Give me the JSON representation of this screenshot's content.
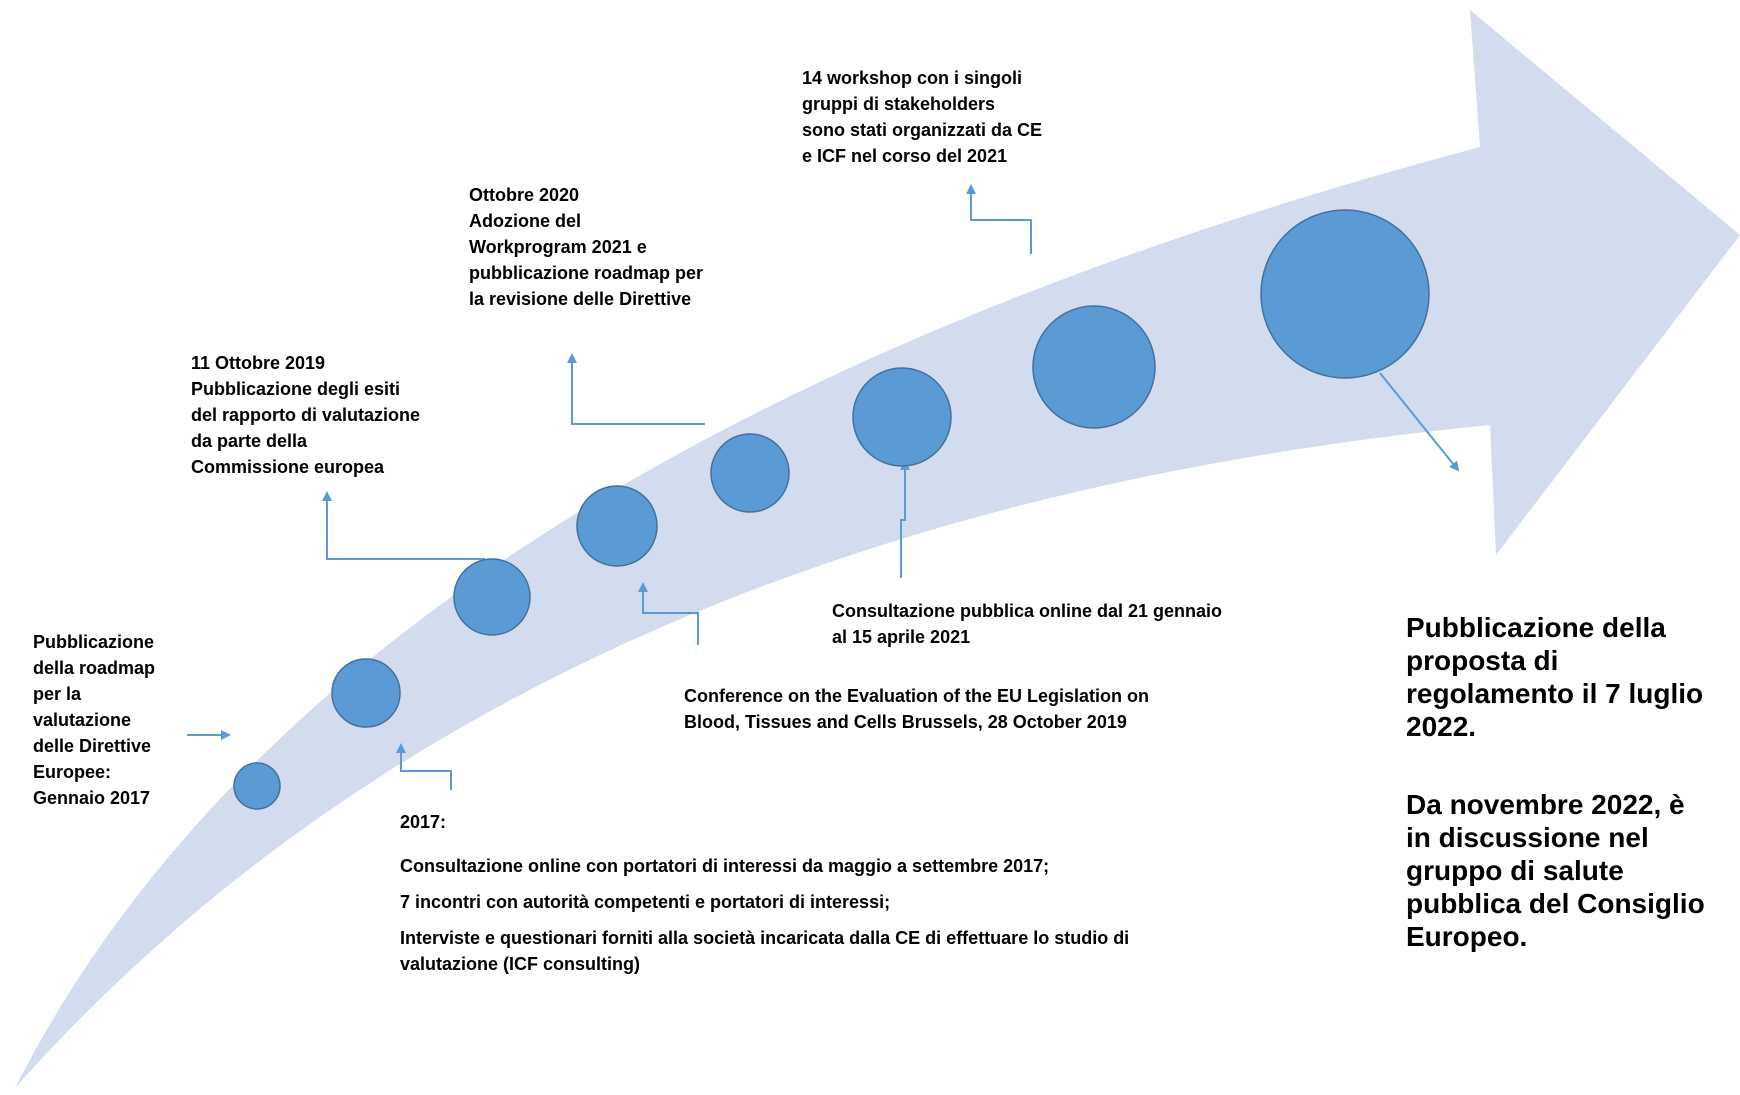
{
  "colors": {
    "arrow": "#d2dcee",
    "circle": "#5b9bd5",
    "circle_stroke": "#41719c",
    "connector": "#5b9bd5"
  },
  "labels": {
    "roadmap_2017": "Pubblicazione\ndella roadmap\nper la\nvalutazione\ndelle Direttive\nEuropee:\nGennaio 2017",
    "evaluation_2019": "11 Ottobre 2019\nPubblicazione degli esiti\ndel rapporto di valutazione\nda parte della\nCommissione europea",
    "workprogram_2020": "Ottobre 2020\nAdozione del\nWorkprogram 2021 e\npubblicazione roadmap per\nla revisione delle Direttive",
    "workshops_2021": "14 workshop con i singoli\ngruppi di stakeholders\nsono stati organizzati da CE\ne ICF nel corso del 2021",
    "public_consultation_2021": "Consultazione pubblica online dal 21 gennaio\nal 15 aprile 2021",
    "conference_2019": "Conference on the Evaluation of the EU Legislation on\nBlood, Tissues and Cells Brussels, 28 October 2019"
  },
  "block_2017": {
    "heading": "2017:",
    "line1": "Consultazione online con portatori di interessi da maggio a settembre 2017;",
    "line2": "7 incontri con autorità competenti e portatori di interessi;",
    "line3": "Interviste e questionari forniti alla società incaricata dalla CE di effettuare lo studio di\nvalutazione (ICF consulting)"
  },
  "final_text": {
    "p1": "Pubblicazione della\nproposta di\nregolamento il 7 luglio\n2022.",
    "p2": "Da novembre 2022, è\nin discussione nel\ngruppo di salute\npubblica del Consiglio\nEuropeo."
  }
}
